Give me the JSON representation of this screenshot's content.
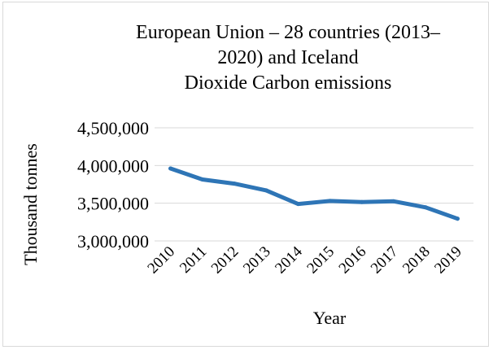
{
  "chart_data": {
    "type": "line",
    "title_lines": [
      "European Union – 28 countries (2013–",
      "2020) and Iceland",
      "Dioxide Carbon emissions"
    ],
    "xlabel": "Year",
    "ylabel": "Thousand tonnes",
    "x": [
      "2010",
      "2011",
      "2012",
      "2013",
      "2014",
      "2015",
      "2016",
      "2017",
      "2018",
      "2019"
    ],
    "y_ticks": [
      "3,000,000",
      "3,500,000",
      "4,000,000",
      "4,500,000"
    ],
    "y_tick_values": [
      3000000,
      3500000,
      4000000,
      4500000
    ],
    "ylim": [
      3000000,
      4500000
    ],
    "grid": "horizontal",
    "series": [
      {
        "values": [
          3960000,
          3815000,
          3760000,
          3670000,
          3490000,
          3530000,
          3515000,
          3525000,
          3445000,
          3295000
        ]
      }
    ],
    "line_color": "#2e75b6",
    "grid_color": "#d9d9d9"
  }
}
